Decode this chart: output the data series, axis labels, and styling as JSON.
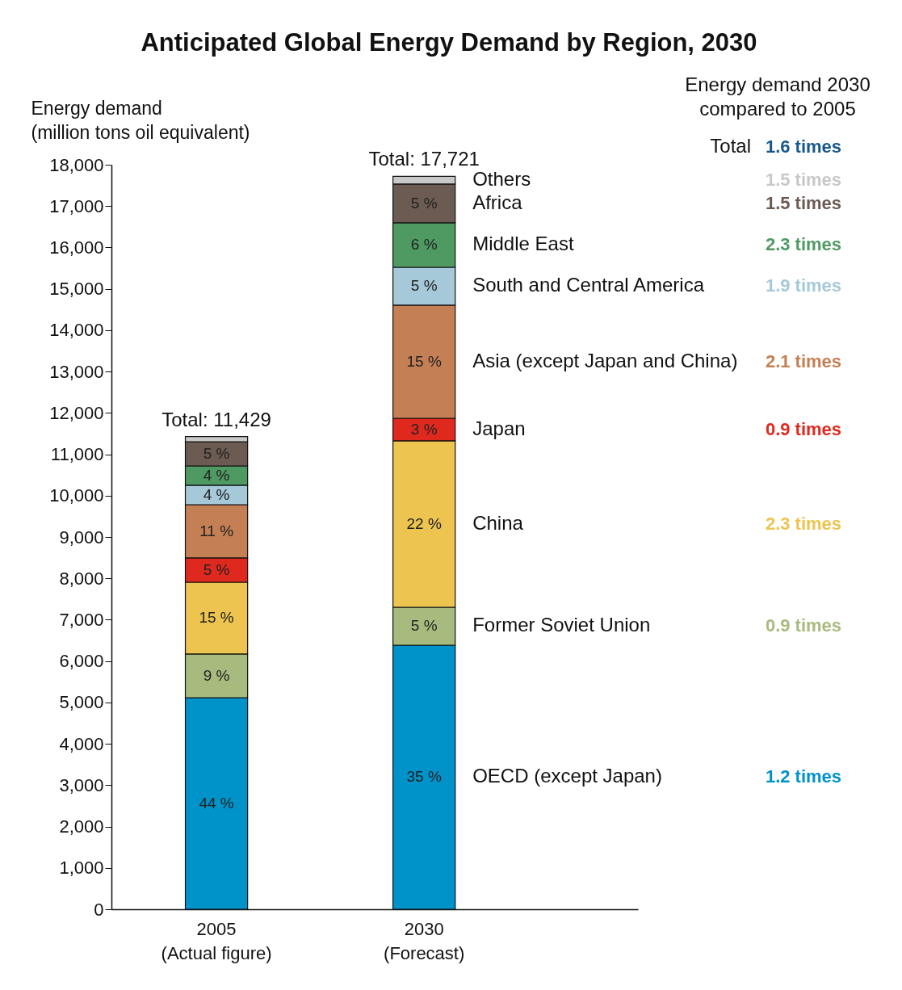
{
  "chart_data": {
    "type": "bar",
    "title": "Anticipated Global Energy Demand by Region, 2030",
    "ylabel": "Energy demand (million tons oil equivalent)",
    "categories": [
      "2005 (Actual figure)",
      "2030 (Forecast)"
    ],
    "stacked": true,
    "ylim": [
      0,
      18000
    ],
    "yticks": [
      0,
      {
        "value": 1000,
        "label": "1,000"
      },
      {
        "value": 2000,
        "label": "2,000"
      },
      {
        "value": 3000,
        "label": "3,000"
      },
      {
        "value": 4000,
        "label": "4,000"
      },
      {
        "value": 5000,
        "label": "5,000"
      },
      {
        "value": 6000,
        "label": "6,000"
      },
      {
        "value": 7000,
        "label": "7,000"
      },
      {
        "value": 8000,
        "label": "8,000"
      },
      {
        "value": 9000,
        "label": "9,000"
      },
      {
        "value": 10000,
        "label": "10,000"
      },
      {
        "value": 11000,
        "label": "11,000"
      },
      {
        "value": 12000,
        "label": "12,000"
      },
      {
        "value": 13000,
        "label": "13,000"
      },
      {
        "value": 14000,
        "label": "14,000"
      },
      {
        "value": 15000,
        "label": "15,000"
      },
      {
        "value": 16000,
        "label": "16,000"
      },
      {
        "value": 17000,
        "label": "17,000"
      },
      {
        "value": 18000,
        "label": "18,000"
      }
    ],
    "series": [
      {
        "name": "OECD (except Japan)",
        "color": "#0093c9",
        "values": [
          5115,
          6384
        ]
      },
      {
        "name": "Former Soviet Union",
        "color": "#a7bb7e",
        "values": [
          1055,
          918
        ]
      },
      {
        "name": "China",
        "color": "#ecc44f",
        "values": [
          1737,
          4022
        ]
      },
      {
        "name": "Japan",
        "color": "#e0291e",
        "values": [
          586,
          546
        ]
      },
      {
        "name": "Asia (except Japan and China)",
        "color": "#c47f55",
        "values": [
          1288,
          2734
        ]
      },
      {
        "name": "South and Central America",
        "color": "#a5c9d9",
        "values": [
          469,
          917
        ]
      },
      {
        "name": "Middle East",
        "color": "#4e9a62",
        "values": [
          468,
          1074
        ]
      },
      {
        "name": "Africa",
        "color": "#6b5b52",
        "values": [
          586,
          937
        ]
      },
      {
        "name": "Others",
        "color": "#c8c8c8",
        "values": [
          125,
          189
        ]
      }
    ],
    "totals": [
      "Total: 11,429",
      "Total: 17,721"
    ],
    "annotations": [
      "Energy demand 2030 compared to 2005",
      "Total",
      "1.6 times",
      "1.2 times",
      "0.9 times",
      "2.3 times",
      "0.9 times",
      "2.1 times",
      "1.9 times",
      "2.3 times",
      "1.5 times",
      "1.5 times",
      "44 %",
      "9 %",
      "15 %",
      "5 %",
      "11 %",
      "4 %",
      "4 %",
      "5 %",
      "35 %",
      "5 %",
      "22 %",
      "3 %",
      "15 %",
      "5 %",
      "6 %",
      "5 %"
    ]
  }
}
